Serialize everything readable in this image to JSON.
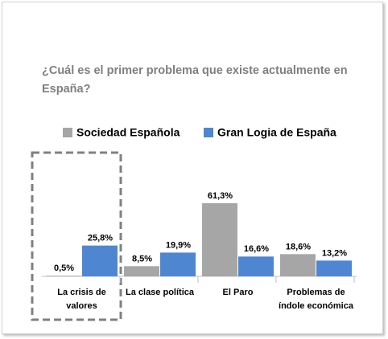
{
  "chart_data": {
    "type": "bar",
    "title": "¿Cuál es el primer problema que existe actualmente en España?",
    "categories": [
      "La crisis de valores",
      "La clase política",
      "El Paro",
      "Problemas de índole económica"
    ],
    "series": [
      {
        "name": "Sociedad Española",
        "color": "#a6a6a6",
        "values": [
          0.5,
          8.5,
          61.3,
          18.6
        ],
        "value_labels": [
          "0,5%",
          "8,5%",
          "61,3%",
          "18,6%"
        ]
      },
      {
        "name": "Gran Logia de España",
        "color": "#4f86d2",
        "values": [
          25.8,
          19.9,
          16.6,
          13.2
        ],
        "value_labels": [
          "25,8%",
          "19,9%",
          "16,6%",
          "13,2%"
        ]
      }
    ]
  }
}
